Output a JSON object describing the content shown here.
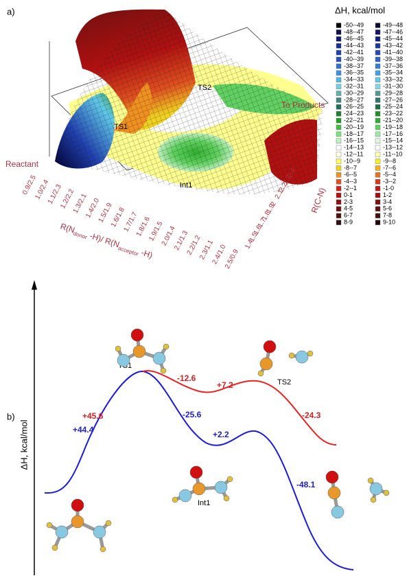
{
  "panel_a": {
    "label": "a)",
    "annotations": {
      "reactant": "Reactant",
      "ts1": "TS1",
      "ts2": "TS2",
      "int1": "Int1",
      "products": "To Products"
    },
    "x_axis": {
      "title_parts": [
        "R(N",
        "donor",
        " -H)/ R(N",
        "acceptor",
        " -H)"
      ],
      "ticks": [
        "0.9/2.5",
        "1.0/2.4",
        "1.1/2.3",
        "1.2/2.2",
        "1.3/2.1",
        "1.4/2.0",
        "1.5/1.9",
        "1.6/1.8",
        "1.7/1.7",
        "1.8/1.6",
        "1.9/1.5",
        "2.0/1.4",
        "2.1/1.3",
        "2.2/1.2",
        "2.3/1.1",
        "2.4/1.0",
        "2.5/0.9"
      ]
    },
    "y_axis": {
      "title": "R(C-N)",
      "ticks": [
        "1.4",
        "1.5",
        "1.6",
        "1.7",
        "1.8",
        "1.9",
        "2",
        "2.1",
        "2.2",
        "2.3",
        "2.4"
      ]
    },
    "legend": {
      "title": "ΔH, kcal/mol",
      "entries": [
        {
          "label": "-50--49",
          "color": "#000000"
        },
        {
          "label": "-49--48",
          "color": "#0a0a30"
        },
        {
          "label": "-48--47",
          "color": "#10104a"
        },
        {
          "label": "-47--46",
          "color": "#141466"
        },
        {
          "label": "-46--45",
          "color": "#101870"
        },
        {
          "label": "-45--44",
          "color": "#10207a"
        },
        {
          "label": "-44--43",
          "color": "#183090"
        },
        {
          "label": "-43--42",
          "color": "#1838a0"
        },
        {
          "label": "-42--41",
          "color": "#2040b0"
        },
        {
          "label": "-41--40",
          "color": "#2848b8"
        },
        {
          "label": "-40--39",
          "color": "#2850c0"
        },
        {
          "label": "-39--38",
          "color": "#3060c8"
        },
        {
          "label": "-38--37",
          "color": "#3070d0"
        },
        {
          "label": "-37--36",
          "color": "#3080d8"
        },
        {
          "label": "-36--35",
          "color": "#3890e0"
        },
        {
          "label": "-35--34",
          "color": "#40a0e8"
        },
        {
          "label": "-34--33",
          "color": "#50b8e8"
        },
        {
          "label": "-33--32",
          "color": "#60c8e8"
        },
        {
          "label": "-32--31",
          "color": "#70d0e8"
        },
        {
          "label": "-31--30",
          "color": "#80d8e8"
        },
        {
          "label": "-30--29",
          "color": "#60b0b0"
        },
        {
          "label": "-29--28",
          "color": "#509898"
        },
        {
          "label": "-28--27",
          "color": "#408880"
        },
        {
          "label": "-27--26",
          "color": "#307870"
        },
        {
          "label": "-26--25",
          "color": "#207060"
        },
        {
          "label": "-25--24",
          "color": "#1a7040"
        },
        {
          "label": "-24--23",
          "color": "#208030"
        },
        {
          "label": "-23--22",
          "color": "#209028"
        },
        {
          "label": "-22--21",
          "color": "#20a020"
        },
        {
          "label": "-21--20",
          "color": "#30b030"
        },
        {
          "label": "-20--19",
          "color": "#40c040"
        },
        {
          "label": "-19--18",
          "color": "#60d060"
        },
        {
          "label": "-18--17",
          "color": "#80e080"
        },
        {
          "label": "-17--16",
          "color": "#a0e8a0"
        },
        {
          "label": "-16--15",
          "color": "#c0f0c0"
        },
        {
          "label": "-15--14",
          "color": "#e0f8e0"
        },
        {
          "label": "-14--13",
          "color": "#ffffff"
        },
        {
          "label": "-13--12",
          "color": "#ffffff"
        },
        {
          "label": "-12--11",
          "color": "#ffffe8"
        },
        {
          "label": "-11--10",
          "color": "#ffffb0"
        },
        {
          "label": "-10--9",
          "color": "#ffff60"
        },
        {
          "label": "-9--8",
          "color": "#f8f020"
        },
        {
          "label": "-8--7",
          "color": "#f0d020"
        },
        {
          "label": "-7--6",
          "color": "#f0b020"
        },
        {
          "label": "-6--5",
          "color": "#f09020"
        },
        {
          "label": "-5--4",
          "color": "#e87020"
        },
        {
          "label": "-4--3",
          "color": "#e05020"
        },
        {
          "label": "-3--2",
          "color": "#d83820"
        },
        {
          "label": "-2--1",
          "color": "#d02020"
        },
        {
          "label": "-1-0",
          "color": "#c01818"
        },
        {
          "label": "0-1",
          "color": "#b01010"
        },
        {
          "label": "1-2",
          "color": "#a01010"
        },
        {
          "label": "2-3",
          "color": "#901010"
        },
        {
          "label": "3-4",
          "color": "#801010"
        },
        {
          "label": "4-5",
          "color": "#701010"
        },
        {
          "label": "5-6",
          "color": "#601010"
        },
        {
          "label": "6-7",
          "color": "#501010"
        },
        {
          "label": "7-8",
          "color": "#401010"
        },
        {
          "label": "8-9",
          "color": "#301010"
        },
        {
          "label": "9-10",
          "color": "#200808"
        }
      ]
    }
  },
  "panel_b": {
    "label": "b)",
    "y_axis_title": "ΔH, kcal/mol",
    "structures": {
      "ts1": "TS1",
      "ts2": "TS2",
      "int1": "Int1"
    },
    "red_labels": [
      "+45.6",
      "-12.6",
      "+7.2",
      "-24.3"
    ],
    "blue_labels": [
      "+44.4",
      "-25.6",
      "+2.2",
      "-48.1"
    ]
  }
}
